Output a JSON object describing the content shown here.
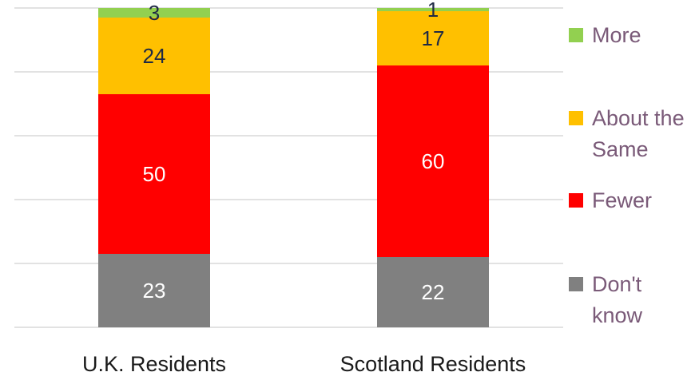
{
  "chart_data": {
    "type": "bar",
    "stacked": true,
    "categories": [
      "U.K. Residents",
      "Scotland Residents"
    ],
    "series": [
      {
        "name": "Don't know",
        "values": [
          23,
          22
        ],
        "color": "#808080",
        "label_color": "#ffffff"
      },
      {
        "name": "Fewer",
        "values": [
          50,
          60
        ],
        "color": "#ff0000",
        "label_color": "#ffffff"
      },
      {
        "name": "About the Same",
        "values": [
          24,
          17
        ],
        "color": "#ffc000",
        "label_color": "#1f2a44"
      },
      {
        "name": "More",
        "values": [
          3,
          1
        ],
        "color": "#92d050",
        "label_color": "#1f2a44"
      }
    ],
    "ylim": [
      0,
      100
    ],
    "grid": true,
    "legend_position": "right",
    "legend_order": [
      "More",
      "About the Same",
      "Fewer",
      "Don't know"
    ]
  }
}
